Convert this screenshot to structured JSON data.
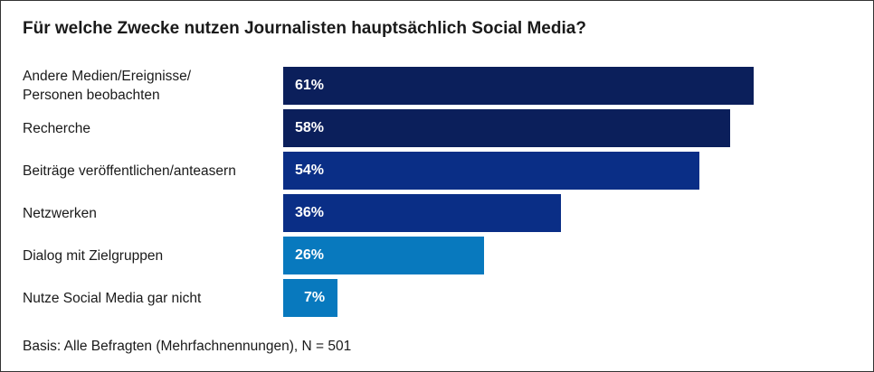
{
  "chart_data": {
    "type": "bar",
    "orientation": "horizontal",
    "title": "Für welche Zwecke nutzen Journalisten hauptsächlich Social Media?",
    "categories": [
      "Andere Medien/Ereignisse/\nPersonen beobachten",
      "Recherche",
      "Beiträge veröffentlichen/anteasern",
      "Netzwerken",
      "Dialog mit Zielgruppen",
      "Nutze Social Media gar nicht"
    ],
    "values": [
      61,
      58,
      54,
      36,
      26,
      7
    ],
    "labels": [
      "61%",
      "58%",
      "54%",
      "36%",
      "26%",
      "7%"
    ],
    "colors": [
      "#0b1f5b",
      "#0b1f5b",
      "#0a2e86",
      "#0a2e86",
      "#0879be",
      "#0879be"
    ],
    "unit": "%",
    "grid": false,
    "footnote": "Basis: Alle Befragten (Mehrfachnennungen), N = 501"
  }
}
